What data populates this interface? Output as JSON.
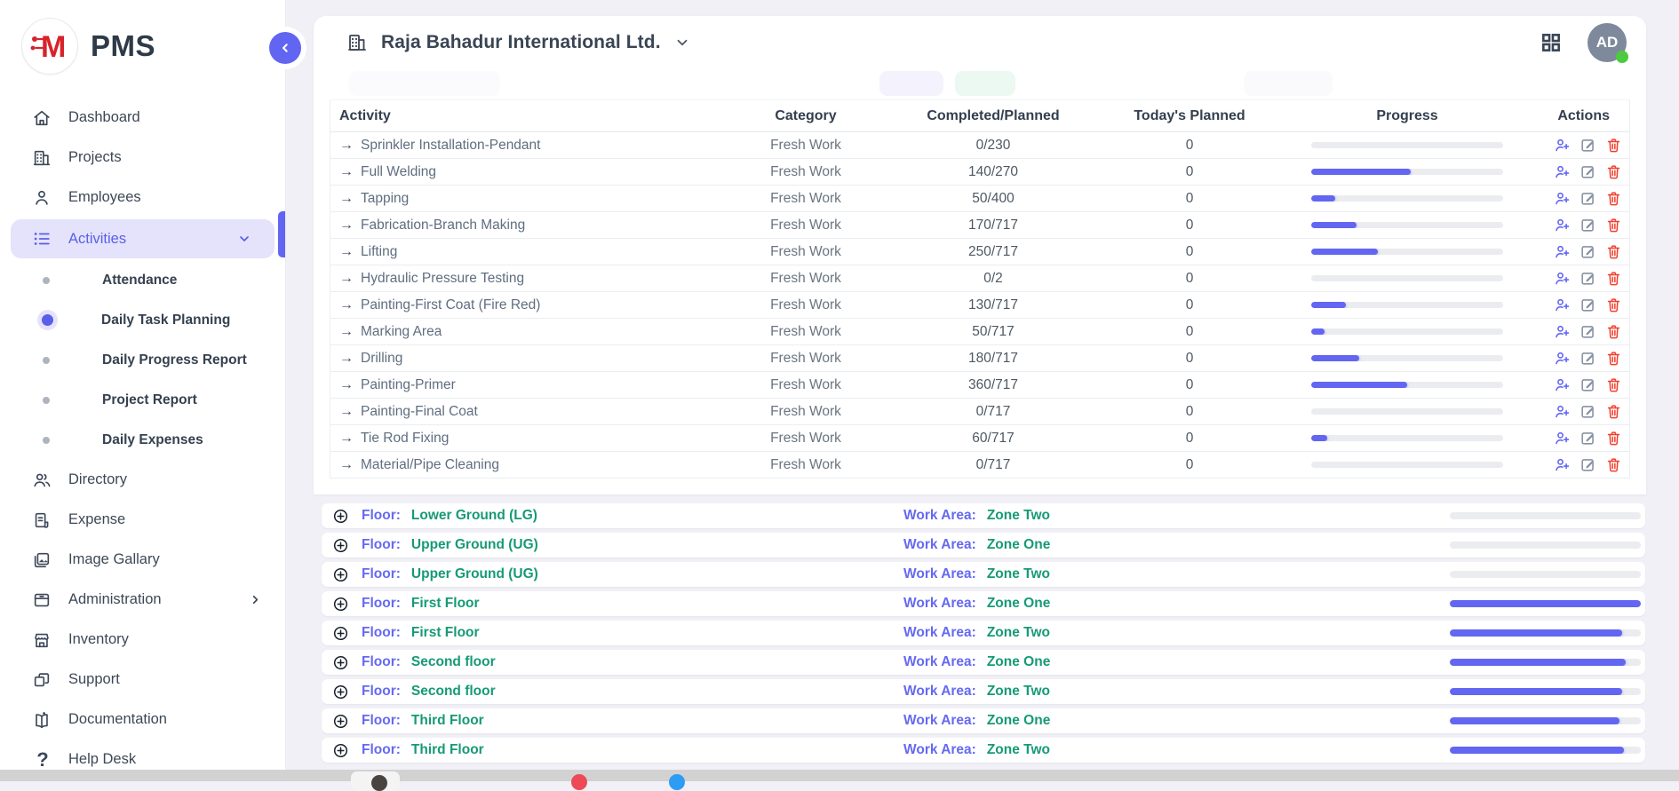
{
  "app": {
    "logo_text": "PMS"
  },
  "sidebar": {
    "items": [
      {
        "label": "Dashboard"
      },
      {
        "label": "Projects"
      },
      {
        "label": "Employees"
      },
      {
        "label": "Activities"
      },
      {
        "label": "Directory"
      },
      {
        "label": "Expense"
      },
      {
        "label": "Image Gallary"
      },
      {
        "label": "Administration"
      },
      {
        "label": "Inventory"
      },
      {
        "label": "Support"
      },
      {
        "label": "Documentation"
      },
      {
        "label": "Help Desk"
      }
    ],
    "activities_children": [
      {
        "label": "Attendance",
        "active": false
      },
      {
        "label": "Daily Task Planning",
        "active": true
      },
      {
        "label": "Daily Progress Report",
        "active": false
      },
      {
        "label": "Project Report",
        "active": false
      },
      {
        "label": "Daily Expenses",
        "active": false
      }
    ]
  },
  "header": {
    "company": "Raja Bahadur International Ltd.",
    "avatar_initials": "AD"
  },
  "table": {
    "columns": [
      "Activity",
      "Category",
      "Completed/Planned",
      "Today's Planned",
      "Progress",
      "Actions"
    ],
    "rows": [
      {
        "activity": "Sprinkler Installation-Pendant",
        "category": "Fresh Work",
        "completed_planned": "0/230",
        "todays_planned": "0",
        "progress_pct": 0
      },
      {
        "activity": "Full Welding",
        "category": "Fresh Work",
        "completed_planned": "140/270",
        "todays_planned": "0",
        "progress_pct": 52
      },
      {
        "activity": "Tapping",
        "category": "Fresh Work",
        "completed_planned": "50/400",
        "todays_planned": "0",
        "progress_pct": 12.5
      },
      {
        "activity": "Fabrication-Branch Making",
        "category": "Fresh Work",
        "completed_planned": "170/717",
        "todays_planned": "0",
        "progress_pct": 23.7
      },
      {
        "activity": "Lifting",
        "category": "Fresh Work",
        "completed_planned": "250/717",
        "todays_planned": "0",
        "progress_pct": 34.9
      },
      {
        "activity": "Hydraulic Pressure Testing",
        "category": "Fresh Work",
        "completed_planned": "0/2",
        "todays_planned": "0",
        "progress_pct": 0
      },
      {
        "activity": "Painting-First Coat (Fire Red)",
        "category": "Fresh Work",
        "completed_planned": "130/717",
        "todays_planned": "0",
        "progress_pct": 18.1
      },
      {
        "activity": "Marking Area",
        "category": "Fresh Work",
        "completed_planned": "50/717",
        "todays_planned": "0",
        "progress_pct": 7
      },
      {
        "activity": "Drilling",
        "category": "Fresh Work",
        "completed_planned": "180/717",
        "todays_planned": "0",
        "progress_pct": 25.1
      },
      {
        "activity": "Painting-Primer",
        "category": "Fresh Work",
        "completed_planned": "360/717",
        "todays_planned": "0",
        "progress_pct": 50.2
      },
      {
        "activity": "Painting-Final Coat",
        "category": "Fresh Work",
        "completed_planned": "0/717",
        "todays_planned": "0",
        "progress_pct": 0
      },
      {
        "activity": "Tie Rod Fixing",
        "category": "Fresh Work",
        "completed_planned": "60/717",
        "todays_planned": "0",
        "progress_pct": 8.4
      },
      {
        "activity": "Material/Pipe Cleaning",
        "category": "Fresh Work",
        "completed_planned": "0/717",
        "todays_planned": "0",
        "progress_pct": 0
      }
    ]
  },
  "floors": {
    "floor_label": "Floor:",
    "work_area_label": "Work Area:",
    "rows": [
      {
        "floor": "Lower Ground (LG)",
        "work_area": "Zone Two",
        "progress_pct": 0
      },
      {
        "floor": "Upper Ground (UG)",
        "work_area": "Zone One",
        "progress_pct": 0
      },
      {
        "floor": "Upper Ground (UG)",
        "work_area": "Zone Two",
        "progress_pct": 0
      },
      {
        "floor": "First Floor",
        "work_area": "Zone One",
        "progress_pct": 100
      },
      {
        "floor": "First Floor",
        "work_area": "Zone Two",
        "progress_pct": 90
      },
      {
        "floor": "Second floor",
        "work_area": "Zone One",
        "progress_pct": 92
      },
      {
        "floor": "Second floor",
        "work_area": "Zone Two",
        "progress_pct": 90
      },
      {
        "floor": "Third Floor",
        "work_area": "Zone One",
        "progress_pct": 89
      },
      {
        "floor": "Third Floor",
        "work_area": "Zone Two",
        "progress_pct": 91
      }
    ]
  },
  "colors": {
    "accent_indigo": "#6366F1",
    "active_pill_bg": "#E4E3FB",
    "floor_value_green": "#169A76",
    "delete_red": "#F2402F",
    "avatar_bg": "#7E8A9B",
    "online_green": "#4CCB3E",
    "logo_red": "#D8232A",
    "progress_track": "#EBECF0"
  }
}
